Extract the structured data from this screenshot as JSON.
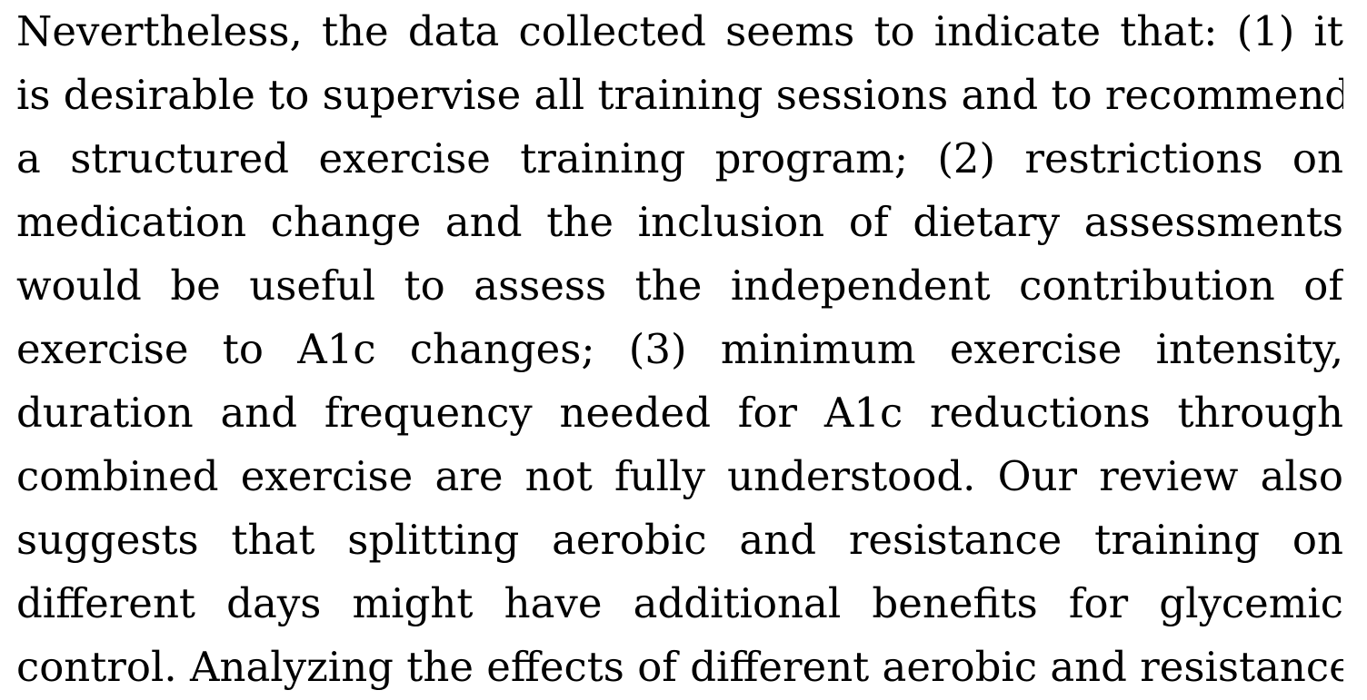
{
  "document": {
    "paragraph_lines": [
      "Nevertheless, the data collected seems to indicate that: (1) it",
      "is desirable to supervise all training sessions and to recommend",
      "a structured exercise training program; (2) restrictions on",
      "medication change and the inclusion of dietary assessments",
      "would be useful to assess the independent contribution of",
      "exercise to A1c changes; (3) minimum exercise intensity,",
      "duration and frequency needed for A1c reductions through",
      "combined exercise are not fully understood. Our review also",
      "suggests that splitting aerobic and resistance training on",
      "different days might have additional benefits for glycemic",
      "control. Analyzing the effects of different aerobic and resistance"
    ]
  }
}
